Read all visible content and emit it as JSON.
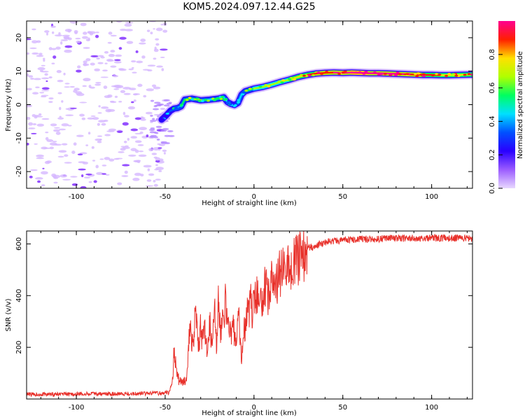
{
  "figure": {
    "title": "KOM5.2024.097.12.44.G25"
  },
  "chart_data": [
    {
      "type": "heatmap",
      "xlabel": "Height of straight line (km)",
      "ylabel": "Frequency (Hz)",
      "xlim": [
        -128,
        123
      ],
      "ylim": [
        -25,
        25
      ],
      "x_ticks": [
        "-100",
        "-50",
        "0",
        "50",
        "100"
      ],
      "y_ticks": [
        "-20",
        "-10",
        "0",
        "10",
        "20"
      ],
      "colorbar": {
        "label": "Normalized spectral amplitude",
        "range": [
          0,
          1
        ],
        "ticks": [
          "0.0",
          "0.2",
          "0.4",
          "0.6",
          "0.8"
        ],
        "colormap": [
          "#e8d8ff",
          "#9b5cff",
          "#2a00ff",
          "#0050ff",
          "#00e0ff",
          "#00ff60",
          "#b0ff00",
          "#ffe000",
          "#ff2000",
          "#ff0090"
        ]
      },
      "noise_region": {
        "x_range": [
          -128,
          -50
        ],
        "amplitude": 0.15
      },
      "signal_ridge": {
        "x": [
          -52,
          -49,
          -47,
          -45,
          -43,
          -41,
          -39,
          -35,
          -30,
          -25,
          -20,
          -17,
          -15,
          -13,
          -11,
          -9,
          -7,
          -5,
          0,
          5,
          10,
          15,
          20,
          25,
          30,
          35,
          40,
          45,
          50,
          55,
          60,
          65,
          70,
          75,
          80,
          85,
          90,
          95,
          100,
          105,
          110,
          115,
          123
        ],
        "frequency": [
          -4.5,
          -3.0,
          -1.8,
          -1.2,
          -1.0,
          -0.5,
          1.5,
          1.8,
          1.3,
          1.5,
          1.8,
          2.2,
          0.8,
          0.2,
          -0.1,
          0.5,
          3.0,
          4.0,
          4.8,
          5.3,
          6.0,
          6.8,
          7.5,
          8.3,
          8.9,
          9.3,
          9.5,
          9.6,
          9.5,
          9.6,
          9.5,
          9.4,
          9.4,
          9.3,
          9.2,
          9.1,
          9.0,
          8.9,
          8.9,
          8.8,
          8.8,
          8.9,
          9.0
        ],
        "amplitude": [
          0.25,
          0.3,
          0.35,
          0.4,
          0.42,
          0.45,
          0.55,
          0.5,
          0.5,
          0.45,
          0.5,
          0.5,
          0.4,
          0.35,
          0.35,
          0.4,
          0.45,
          0.5,
          0.55,
          0.6,
          0.65,
          0.6,
          0.65,
          0.7,
          0.75,
          0.8,
          0.85,
          0.85,
          0.9,
          0.92,
          0.95,
          0.95,
          0.9,
          0.92,
          0.88,
          0.85,
          0.82,
          0.8,
          0.75,
          0.78,
          0.7,
          0.75,
          0.7
        ]
      }
    },
    {
      "type": "line",
      "xlabel": "Height of straight line (km)",
      "ylabel": "SNR (v/v)",
      "xlim": [
        -128,
        123
      ],
      "ylim": [
        0,
        650
      ],
      "x_ticks": [
        "-100",
        "-50",
        "0",
        "50",
        "100"
      ],
      "y_ticks": [
        "200",
        "400",
        "600"
      ],
      "color": "#e8302a",
      "series": [
        {
          "x": [
            -128,
            -110,
            -90,
            -70,
            -55,
            -48,
            -46,
            -45,
            -44,
            -43,
            -42,
            -41,
            -40,
            -39,
            -38,
            -36,
            -35,
            -34,
            -33,
            -32,
            -31,
            -30,
            -29,
            -28,
            -27,
            -26,
            -25,
            -24,
            -23,
            -22,
            -21,
            -20,
            -19,
            -18,
            -17,
            -16,
            -15,
            -14,
            -13,
            -12,
            -11,
            -10,
            -9,
            -8,
            -7,
            -6,
            -5,
            -4,
            -3,
            -2,
            -1,
            0,
            2,
            4,
            6,
            8,
            10,
            12,
            14,
            16,
            18,
            20,
            22,
            24,
            26,
            28,
            30,
            35,
            40,
            45,
            50,
            60,
            70,
            80,
            90,
            100,
            110,
            123
          ],
          "values": [
            18,
            18,
            20,
            20,
            22,
            25,
            60,
            180,
            140,
            80,
            70,
            60,
            65,
            75,
            90,
            280,
            230,
            180,
            400,
            250,
            200,
            300,
            210,
            280,
            220,
            180,
            300,
            240,
            250,
            330,
            200,
            410,
            250,
            320,
            260,
            420,
            280,
            300,
            220,
            320,
            240,
            200,
            350,
            250,
            140,
            250,
            270,
            360,
            320,
            390,
            300,
            380,
            420,
            360,
            440,
            400,
            460,
            430,
            480,
            500,
            490,
            520,
            530,
            540,
            550,
            560,
            580,
            595,
            605,
            612,
            615,
            618,
            620,
            622,
            622,
            623,
            623,
            622
          ]
        }
      ]
    }
  ]
}
